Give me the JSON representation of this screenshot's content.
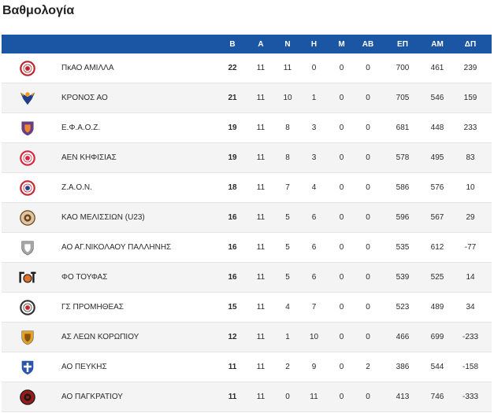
{
  "page": {
    "title": "Βαθμολογία"
  },
  "theme": {
    "header_bg": "#1b56a5",
    "header_text": "#ffffff",
    "row_alt_bg": "#f4f4f4",
    "row_border": "#e4e4e4",
    "text": "#2b2b2b"
  },
  "standings": {
    "columns": {
      "b": "Β",
      "a": "Α",
      "n": "Ν",
      "h": "Η",
      "m": "Μ",
      "ab": "ΑΒ",
      "ep": "ΕΠ",
      "am": "ΑΜ",
      "dp": "ΔΠ"
    },
    "rows": [
      {
        "team": "ΠκΑΟ ΑΜΙΛΛΑ",
        "b": 22,
        "a": 11,
        "n": 11,
        "h": 0,
        "m": 0,
        "ab": 0,
        "ep": 700,
        "am": 461,
        "dp": 239,
        "logo": {
          "icon": "amilla-crest-icon",
          "style": "ring",
          "primary": "#b8252c",
          "secondary": "#b8252c"
        }
      },
      {
        "team": "ΚΡΟΝΟΣ ΑΟ",
        "b": 21,
        "a": 11,
        "n": 10,
        "h": 1,
        "m": 0,
        "ab": 0,
        "ep": 705,
        "am": 546,
        "dp": 159,
        "logo": {
          "icon": "kronos-eagle-icon",
          "style": "eagle",
          "primary": "#1f3f8a",
          "secondary": "#f29a1f"
        }
      },
      {
        "team": "Ε.Φ.Α.Ο.Ζ.",
        "b": 19,
        "a": 11,
        "n": 8,
        "h": 3,
        "m": 0,
        "ab": 0,
        "ep": 681,
        "am": 448,
        "dp": 233,
        "logo": {
          "icon": "efaoz-shield-icon",
          "style": "shield",
          "primary": "#6a3d8c",
          "secondary": "#f0872a"
        }
      },
      {
        "team": "ΑΕΝ ΚΗΦΙΣΙΑΣ",
        "b": 19,
        "a": 11,
        "n": 8,
        "h": 3,
        "m": 0,
        "ab": 0,
        "ep": 578,
        "am": 495,
        "dp": 83,
        "logo": {
          "icon": "aen-kifisias-crest-icon",
          "style": "ring",
          "primary": "#d7263d",
          "secondary": "#d7263d"
        }
      },
      {
        "team": "Ζ.Α.Ο.Ν.",
        "b": 18,
        "a": 11,
        "n": 7,
        "h": 4,
        "m": 0,
        "ab": 0,
        "ep": 586,
        "am": 576,
        "dp": 10,
        "logo": {
          "icon": "zaon-crest-icon",
          "style": "ring",
          "primary": "#c62832",
          "secondary": "#2b3f8f"
        }
      },
      {
        "team": "ΚΑΟ ΜΕΛΙΣΣΙΩΝ (U23)",
        "b": 16,
        "a": 11,
        "n": 5,
        "h": 6,
        "m": 0,
        "ab": 0,
        "ep": 596,
        "am": 567,
        "dp": 29,
        "logo": {
          "icon": "kao-melission-crest-icon",
          "style": "disc",
          "primary": "#dcc7a0",
          "secondary": "#6e4420"
        }
      },
      {
        "team": "ΑΟ ΑΓ.ΝΙΚΟΛΑΟΥ ΠΑΛΛΗΝΗΣ",
        "b": 16,
        "a": 11,
        "n": 5,
        "h": 6,
        "m": 0,
        "ab": 0,
        "ep": 535,
        "am": 612,
        "dp": -77,
        "logo": {
          "icon": "ag-nikolaou-shield-icon",
          "style": "shield",
          "primary": "#a5a5a5",
          "secondary": "#ffffff"
        }
      },
      {
        "team": "ΦΟ ΤΟΥΦΑΣ",
        "b": 16,
        "a": 11,
        "n": 5,
        "h": 6,
        "m": 0,
        "ab": 0,
        "ep": 539,
        "am": 525,
        "dp": 14,
        "logo": {
          "icon": "toufas-monogram-icon",
          "style": "monogram",
          "primary": "#1a1a1a",
          "secondary": "#e0702a"
        }
      },
      {
        "team": "ΓΣ ΠΡΟΜΗΘΕΑΣ",
        "b": 15,
        "a": 11,
        "n": 4,
        "h": 7,
        "m": 0,
        "ab": 0,
        "ep": 523,
        "am": 489,
        "dp": 34,
        "logo": {
          "icon": "promitheas-crest-icon",
          "style": "ring",
          "primary": "#333333",
          "secondary": "#c8262d"
        }
      },
      {
        "team": "ΑΣ ΛΕΩΝ ΚΟΡΩΠΙΟΥ",
        "b": 12,
        "a": 11,
        "n": 1,
        "h": 10,
        "m": 0,
        "ab": 0,
        "ep": 466,
        "am": 699,
        "dp": -233,
        "logo": {
          "icon": "leon-koropiou-shield-icon",
          "style": "shield",
          "primary": "#e3a126",
          "secondary": "#8a5410"
        }
      },
      {
        "team": "ΑΟ ΠΕΥΚΗΣ",
        "b": 11,
        "a": 11,
        "n": 2,
        "h": 9,
        "m": 0,
        "ab": 2,
        "ep": 386,
        "am": 544,
        "dp": -158,
        "logo": {
          "icon": "ao-pefkis-shield-icon",
          "style": "shield-cross",
          "primary": "#2b55a8",
          "secondary": "#ffffff"
        }
      },
      {
        "team": "ΑΟ ΠΑΓΚΡΑΤΙΟΥ",
        "b": 11,
        "a": 11,
        "n": 0,
        "h": 11,
        "m": 0,
        "ab": 0,
        "ep": 413,
        "am": 746,
        "dp": -333,
        "logo": {
          "icon": "ao-pagkratiou-crest-icon",
          "style": "disc",
          "primary": "#9b1a1a",
          "secondary": "#1a1a1a"
        }
      }
    ]
  }
}
